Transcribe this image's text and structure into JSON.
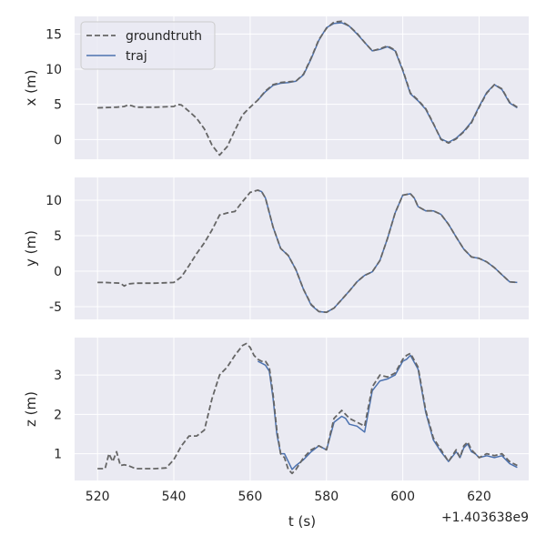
{
  "chart_data": {
    "type": "line",
    "grid": true,
    "legend_position": "top-left",
    "x_offset_label": "+1.403638e9",
    "xlabel": "t (s)",
    "xlim": [
      514,
      633
    ],
    "xticks": [
      520,
      540,
      560,
      580,
      600,
      620
    ],
    "legend": [
      {
        "name": "groundtruth",
        "style": "dashed",
        "color": "#666666"
      },
      {
        "name": "traj",
        "style": "solid",
        "color": "#4c72b0"
      }
    ],
    "colors": {
      "groundtruth": "#666666",
      "traj": "#4c72b0",
      "panel": "#eaeaf2"
    },
    "subplots": [
      {
        "ylabel": "x (m)",
        "ylim": [
          -2.8,
          17.5
        ],
        "yticks": [
          0,
          5,
          10,
          15
        ],
        "series": [
          {
            "name": "groundtruth",
            "x": [
              520,
              525,
              527,
              528,
              529,
              530,
              535,
              540,
              541,
              542,
              544,
              546,
              548,
              550,
              552,
              554,
              556,
              558,
              560,
              562,
              564,
              566,
              568,
              570,
              572,
              574,
              576,
              578,
              580,
              582,
              584,
              586,
              588,
              590,
              592,
              594,
              596,
              598,
              600,
              602,
              604,
              606,
              608,
              610,
              612,
              614,
              616,
              618,
              620,
              622,
              624,
              626,
              628,
              630
            ],
            "y": [
              4.5,
              4.6,
              4.7,
              4.9,
              4.8,
              4.6,
              4.6,
              4.7,
              5.0,
              4.9,
              4.0,
              3.0,
              1.5,
              -0.8,
              -2.2,
              -1.0,
              1.3,
              3.5,
              4.6,
              5.6,
              6.9,
              7.8,
              8.1,
              8.2,
              8.3,
              9.3,
              11.6,
              14.2,
              15.8,
              16.7,
              16.8,
              16.1,
              15.1,
              13.8,
              12.6,
              12.9,
              13.3,
              12.7,
              9.9,
              6.6,
              5.6,
              4.4,
              2.3,
              0.0,
              -0.5,
              0.1,
              1.1,
              2.4,
              4.6,
              6.6,
              7.8,
              7.2,
              5.3,
              4.6
            ]
          },
          {
            "name": "traj",
            "x": [
              562,
              564,
              566,
              568,
              570,
              572,
              574,
              576,
              578,
              580,
              582,
              584,
              586,
              588,
              590,
              592,
              594,
              596,
              598,
              600,
              602,
              604,
              606,
              608,
              610,
              612,
              614,
              616,
              618,
              620,
              622,
              624,
              626,
              628,
              630
            ],
            "y": [
              5.6,
              6.8,
              7.7,
              8.0,
              8.1,
              8.3,
              9.2,
              11.5,
              14.1,
              15.9,
              16.5,
              16.6,
              16.1,
              15.0,
              13.8,
              12.6,
              12.8,
              13.2,
              12.6,
              9.8,
              6.5,
              5.5,
              4.3,
              2.2,
              0.1,
              -0.4,
              0.2,
              1.2,
              2.5,
              4.7,
              6.7,
              7.8,
              7.1,
              5.2,
              4.5
            ]
          }
        ]
      },
      {
        "ylabel": "y (m)",
        "ylim": [
          -6.8,
          13.2
        ],
        "yticks": [
          -5,
          0,
          5,
          10
        ],
        "series": [
          {
            "name": "groundtruth",
            "x": [
              520,
              522,
              526,
              527,
              528,
              530,
              535,
              540,
              542,
              544,
              546,
              548,
              550,
              552,
              554,
              556,
              558,
              560,
              562,
              563,
              564,
              566,
              568,
              570,
              572,
              574,
              576,
              578,
              580,
              582,
              584,
              586,
              588,
              590,
              592,
              594,
              596,
              598,
              600,
              602,
              603,
              604,
              606,
              608,
              610,
              612,
              614,
              616,
              618,
              620,
              622,
              624,
              626,
              628,
              630
            ],
            "y": [
              -1.6,
              -1.6,
              -1.7,
              -2.1,
              -1.8,
              -1.7,
              -1.7,
              -1.6,
              -0.8,
              0.8,
              2.5,
              4.0,
              5.8,
              7.9,
              8.2,
              8.4,
              9.8,
              11.1,
              11.4,
              11.2,
              10.3,
              6.2,
              3.2,
              2.2,
              0.2,
              -2.6,
              -4.7,
              -5.7,
              -5.8,
              -5.2,
              -4.0,
              -2.8,
              -1.5,
              -0.6,
              -0.1,
              1.5,
              4.6,
              8.2,
              10.7,
              10.9,
              10.3,
              9.1,
              8.5,
              8.5,
              8.0,
              6.6,
              4.8,
              3.1,
              2.0,
              1.8,
              1.3,
              0.5,
              -0.5,
              -1.5,
              -1.6
            ]
          },
          {
            "name": "traj",
            "x": [
              562,
              563,
              564,
              566,
              568,
              570,
              572,
              574,
              576,
              578,
              580,
              582,
              584,
              586,
              588,
              590,
              592,
              594,
              596,
              598,
              600,
              602,
              603,
              604,
              606,
              608,
              610,
              612,
              614,
              616,
              618,
              620,
              622,
              624,
              626,
              628,
              630
            ],
            "y": [
              11.4,
              11.2,
              10.3,
              6.2,
              3.2,
              2.2,
              0.2,
              -2.6,
              -4.8,
              -5.7,
              -5.8,
              -5.2,
              -4.0,
              -2.8,
              -1.5,
              -0.6,
              -0.1,
              1.5,
              4.6,
              8.2,
              10.7,
              10.9,
              10.3,
              9.1,
              8.5,
              8.5,
              8.0,
              6.6,
              4.8,
              3.1,
              2.0,
              1.8,
              1.3,
              0.5,
              -0.5,
              -1.5,
              -1.6
            ]
          }
        ]
      },
      {
        "ylabel": "z (m)",
        "ylim": [
          0.32,
          3.95
        ],
        "yticks": [
          1,
          2,
          3
        ],
        "series": [
          {
            "name": "groundtruth",
            "x": [
              520,
              521,
              522,
              523,
              524,
              525,
              526,
              527,
              528,
              530,
              535,
              538,
              540,
              542,
              544,
              546,
              548,
              550,
              552,
              554,
              556,
              558,
              559,
              560,
              561,
              562,
              563,
              564,
              565,
              566,
              567,
              568,
              569,
              570,
              571,
              572,
              574,
              576,
              578,
              580,
              582,
              584,
              585,
              586,
              588,
              590,
              592,
              594,
              596,
              598,
              600,
              601,
              602,
              604,
              606,
              608,
              610,
              612,
              614,
              615,
              616,
              617,
              618,
              619,
              620,
              622,
              624,
              626,
              628,
              630
            ],
            "y": [
              0.62,
              0.62,
              0.62,
              1.0,
              0.8,
              1.05,
              0.7,
              0.72,
              0.7,
              0.62,
              0.62,
              0.64,
              0.85,
              1.2,
              1.45,
              1.45,
              1.6,
              2.4,
              3.0,
              3.2,
              3.5,
              3.75,
              3.8,
              3.7,
              3.5,
              3.4,
              3.35,
              3.35,
              3.2,
              2.5,
              1.6,
              1.0,
              0.9,
              0.6,
              0.5,
              0.6,
              0.9,
              1.1,
              1.2,
              1.1,
              1.9,
              2.1,
              2.0,
              1.9,
              1.8,
              1.7,
              2.7,
              3.0,
              2.95,
              3.05,
              3.4,
              3.5,
              3.55,
              3.2,
              2.1,
              1.4,
              1.1,
              0.8,
              1.1,
              0.9,
              1.2,
              1.3,
              1.1,
              1.0,
              0.9,
              1.0,
              0.95,
              1.0,
              0.8,
              0.7
            ]
          },
          {
            "name": "traj",
            "x": [
              562,
              563,
              564,
              565,
              566,
              567,
              568,
              569,
              570,
              571,
              572,
              574,
              576,
              578,
              580,
              582,
              584,
              585,
              586,
              588,
              590,
              592,
              594,
              596,
              598,
              600,
              601,
              602,
              604,
              606,
              608,
              610,
              612,
              614,
              615,
              616,
              617,
              618,
              619,
              620,
              622,
              624,
              626,
              628,
              630
            ],
            "y": [
              3.35,
              3.3,
              3.25,
              3.1,
              2.4,
              1.5,
              1.0,
              1.0,
              0.8,
              0.6,
              0.7,
              0.85,
              1.05,
              1.2,
              1.1,
              1.8,
              1.95,
              1.9,
              1.75,
              1.7,
              1.55,
              2.6,
              2.85,
              2.9,
              3.0,
              3.35,
              3.4,
              3.5,
              3.15,
              2.05,
              1.35,
              1.05,
              0.8,
              1.05,
              0.9,
              1.15,
              1.25,
              1.05,
              1.0,
              0.9,
              0.95,
              0.9,
              0.95,
              0.75,
              0.65
            ]
          }
        ]
      }
    ]
  }
}
